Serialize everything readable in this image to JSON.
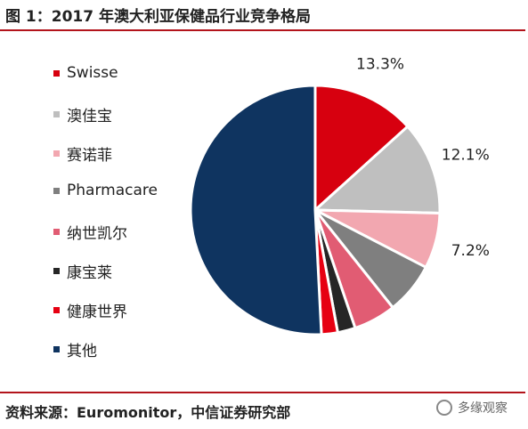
{
  "title": "图 1：2017 年澳大利亚保健品行业竞争格局",
  "source": "资料来源：Euromonitor，中信证券研究部",
  "watermark": "多缘观察",
  "chart_data": {
    "type": "pie",
    "title": "",
    "legend_position": "left",
    "series": [
      {
        "name": "Swisse",
        "value": 13.3,
        "label": "13.3%",
        "color": "#d7000f"
      },
      {
        "name": "澳佳宝",
        "value": 12.1,
        "label": "12.1%",
        "color": "#bfbfbf"
      },
      {
        "name": "赛诺菲",
        "value": 7.2,
        "label": "7.2%",
        "color": "#f2a7b0"
      },
      {
        "name": "Pharmacare",
        "value": 6.7,
        "label": "",
        "color": "#7f7f7f"
      },
      {
        "name": "纳世凯尔",
        "value": 5.5,
        "label": "",
        "color": "#e15c73"
      },
      {
        "name": "康宝莱",
        "value": 2.3,
        "label": "",
        "color": "#262626"
      },
      {
        "name": "健康世界",
        "value": 2.1,
        "label": "",
        "color": "#e60012"
      },
      {
        "name": "其他",
        "value": 50.8,
        "label": "",
        "color": "#0f3460"
      }
    ]
  }
}
